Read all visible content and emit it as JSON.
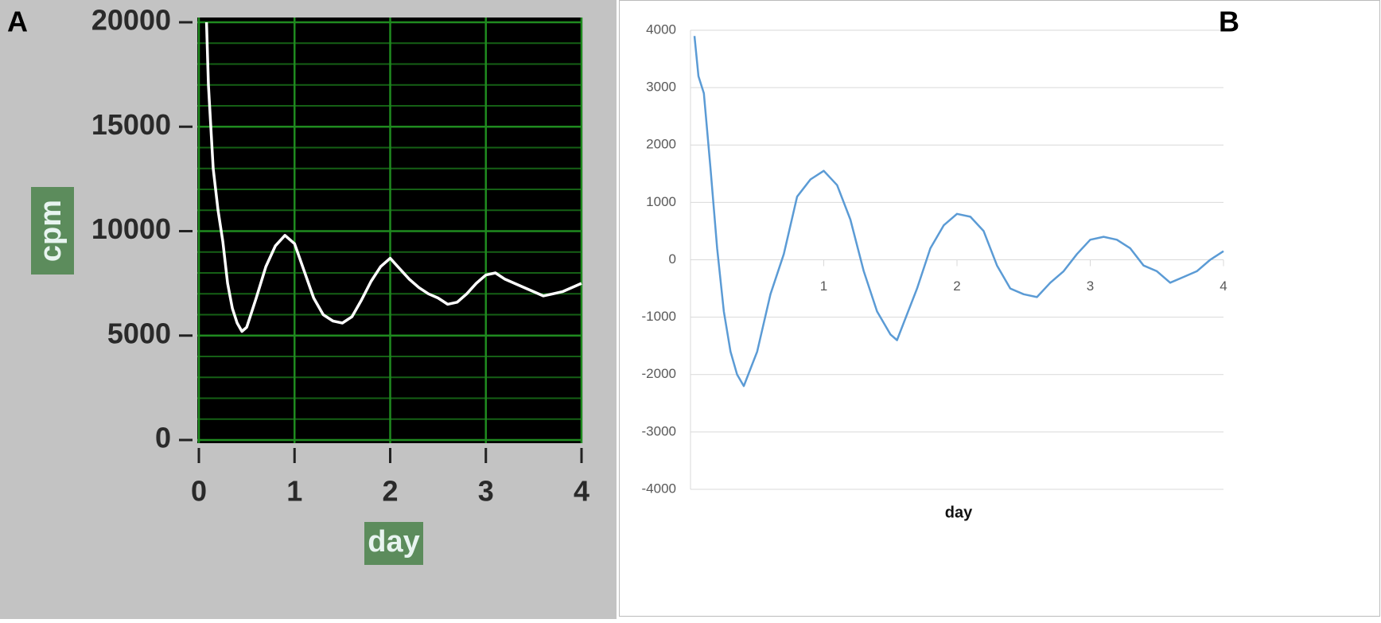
{
  "chart_data": [
    {
      "type": "line",
      "label": "A",
      "xlabel": "day",
      "ylabel": "cpm",
      "xlim": [
        0,
        4
      ],
      "xticks": [
        0,
        1,
        2,
        3,
        4
      ],
      "ylim": [
        0,
        20000
      ],
      "yticks": [
        0,
        5000,
        10000,
        15000,
        20000
      ],
      "minor_yticks": [
        1000,
        2000,
        3000,
        4000,
        6000,
        7000,
        8000,
        9000,
        11000,
        12000,
        13000,
        14000,
        16000,
        17000,
        18000,
        19000
      ],
      "grid": true,
      "series": [
        {
          "color": "#ffffff",
          "x": [
            0.08,
            0.1,
            0.15,
            0.2,
            0.25,
            0.3,
            0.35,
            0.4,
            0.45,
            0.5,
            0.6,
            0.7,
            0.8,
            0.9,
            1.0,
            1.1,
            1.2,
            1.3,
            1.4,
            1.5,
            1.6,
            1.7,
            1.8,
            1.9,
            2.0,
            2.1,
            2.2,
            2.3,
            2.4,
            2.5,
            2.6,
            2.7,
            2.8,
            2.9,
            3.0,
            3.1,
            3.2,
            3.3,
            3.4,
            3.5,
            3.6,
            3.7,
            3.8,
            3.9,
            4.0
          ],
          "values": [
            20000,
            17000,
            13000,
            11000,
            9500,
            7500,
            6300,
            5600,
            5200,
            5400,
            6800,
            8300,
            9300,
            9800,
            9400,
            8100,
            6800,
            6000,
            5700,
            5600,
            5900,
            6700,
            7600,
            8300,
            8700,
            8200,
            7700,
            7300,
            7000,
            6800,
            6500,
            6600,
            7000,
            7500,
            7900,
            8000,
            7700,
            7500,
            7300,
            7100,
            6900,
            7000,
            7100,
            7300,
            7500
          ]
        }
      ]
    },
    {
      "type": "line",
      "label": "B",
      "xlabel": "day",
      "xlim": [
        0,
        4
      ],
      "xticks": [
        1,
        2,
        3,
        4
      ],
      "ylim": [
        -4000,
        4000
      ],
      "yticks": [
        -4000,
        -3000,
        -2000,
        -1000,
        0,
        1000,
        2000,
        3000,
        4000
      ],
      "grid": true,
      "series": [
        {
          "color": "#5b9bd5",
          "x": [
            0.03,
            0.06,
            0.1,
            0.15,
            0.2,
            0.25,
            0.3,
            0.35,
            0.4,
            0.45,
            0.5,
            0.6,
            0.7,
            0.8,
            0.9,
            1.0,
            1.1,
            1.2,
            1.3,
            1.4,
            1.5,
            1.55,
            1.6,
            1.7,
            1.8,
            1.9,
            2.0,
            2.1,
            2.2,
            2.3,
            2.4,
            2.5,
            2.6,
            2.7,
            2.8,
            2.9,
            3.0,
            3.1,
            3.2,
            3.3,
            3.4,
            3.5,
            3.6,
            3.7,
            3.8,
            3.9,
            4.0
          ],
          "values": [
            3900,
            3200,
            2900,
            1600,
            200,
            -900,
            -1600,
            -2000,
            -2200,
            -1900,
            -1600,
            -600,
            100,
            1100,
            1400,
            1550,
            1300,
            700,
            -200,
            -900,
            -1300,
            -1400,
            -1100,
            -500,
            200,
            600,
            800,
            750,
            500,
            -100,
            -500,
            -600,
            -650,
            -400,
            -200,
            100,
            350,
            400,
            350,
            200,
            -100,
            -200,
            -400,
            -300,
            -200,
            0,
            150
          ]
        }
      ]
    }
  ]
}
